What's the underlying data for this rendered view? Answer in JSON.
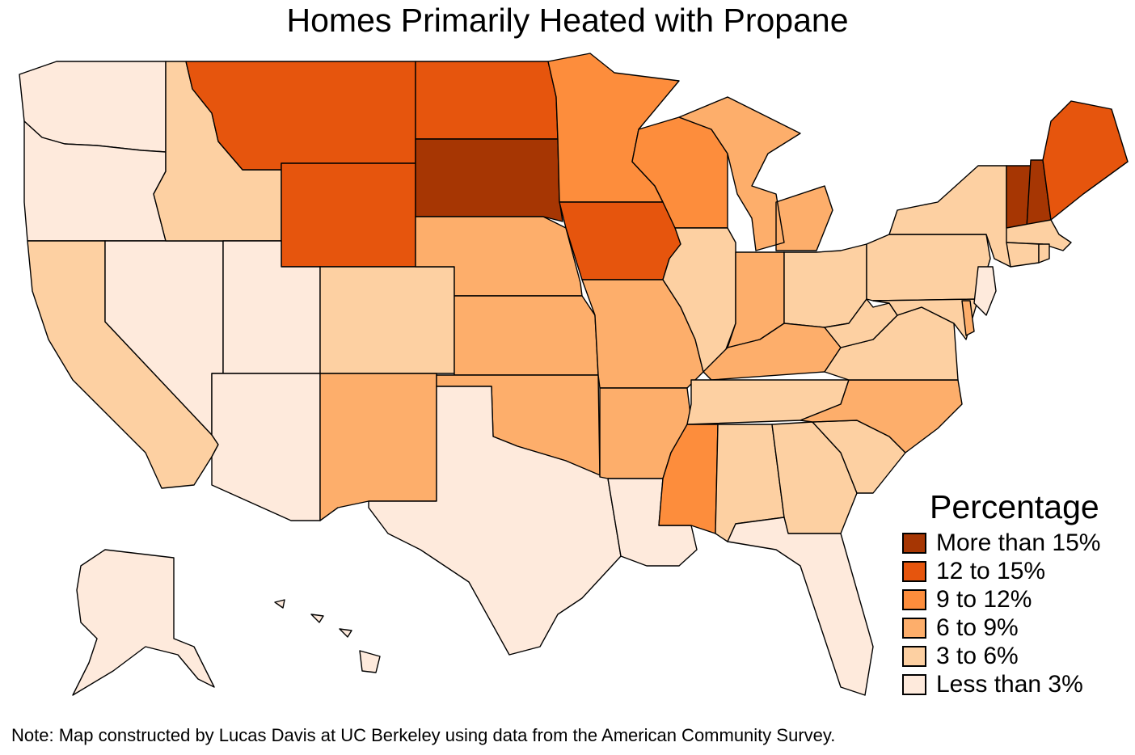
{
  "title": "Homes Primarily Heated with Propane",
  "legend": {
    "title": "Percentage",
    "items": [
      {
        "label": "More than 15%",
        "color": "#a63603"
      },
      {
        "label": "12 to 15%",
        "color": "#e6550d"
      },
      {
        "label": "9 to 12%",
        "color": "#fd8d3c"
      },
      {
        "label": "6 to 9%",
        "color": "#fdae6b"
      },
      {
        "label": "3 to 6%",
        "color": "#fdd0a2"
      },
      {
        "label": "Less than 3%",
        "color": "#feeadc"
      }
    ]
  },
  "note": "Note: Map constructed by Lucas Davis at UC Berkeley using data from the American Community Survey.",
  "states": {
    "WA": 0,
    "OR": 0,
    "CA": 1,
    "NV": 0,
    "ID": 1,
    "MT": 4,
    "WY": 4,
    "UT": 0,
    "AZ": 0,
    "CO": 1,
    "NM": 2,
    "ND": 4,
    "SD": 5,
    "NE": 2,
    "KS": 2,
    "OK": 2,
    "TX": 0,
    "MN": 3,
    "IA": 4,
    "MO": 2,
    "AR": 2,
    "LA": 0,
    "WI": 3,
    "IL": 1,
    "MI": 2,
    "IN": 2,
    "OH": 1,
    "KY": 2,
    "TN": 1,
    "MS": 3,
    "AL": 1,
    "GA": 1,
    "FL": 0,
    "SC": 1,
    "NC": 2,
    "VA": 1,
    "WV": 1,
    "PA": 1,
    "NY": 1,
    "VT": 5,
    "NH": 5,
    "ME": 4,
    "MA": 1,
    "CT": 1,
    "RI": 1,
    "NJ": 0,
    "DE": 2,
    "MD": 1,
    "AK": 0,
    "HI": 0
  }
}
